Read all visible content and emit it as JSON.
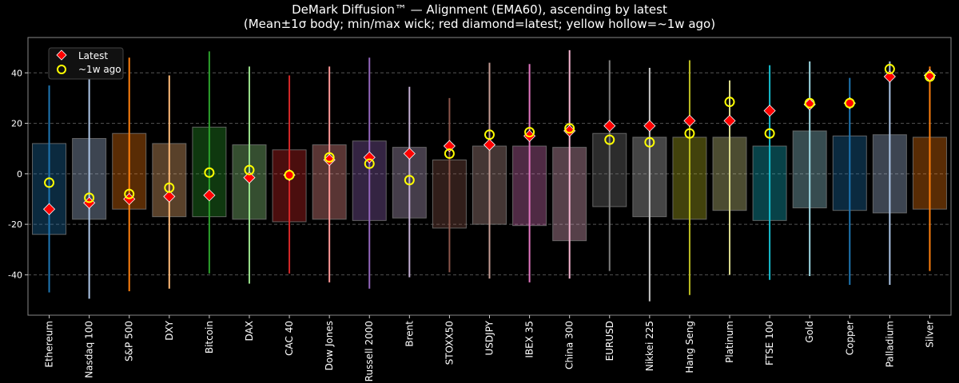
{
  "chart_data": {
    "type": "box",
    "title": "DeMark Diffusion™ — Alignment (EMA60), ascending by latest",
    "subtitle": "(Mean±1σ body; min/max wick; red diamond=latest; yellow hollow=~1w ago)",
    "xlabel": "",
    "ylabel": "",
    "ylim": [
      -56,
      54
    ],
    "yticks": [
      -40,
      -20,
      0,
      20,
      40
    ],
    "grid": true,
    "legend": {
      "placement": "top-left",
      "entries": [
        "Latest",
        "~1w ago"
      ]
    },
    "marker_colors": {
      "latest": "#ff0000",
      "week_ago": "#ffff00"
    },
    "categories": [
      "Ethereum",
      "Nasdaq 100",
      "S&P 500",
      "DXY",
      "Bitcoin",
      "DAX",
      "CAC 40",
      "Dow Jones",
      "Russell 2000",
      "Brent",
      "STOXX50",
      "USDJPY",
      "IBEX 35",
      "China 300",
      "EURUSD",
      "Nikkei 225",
      "Hang Seng",
      "Platinum",
      "FTSE 100",
      "Gold",
      "Copper",
      "Palladium",
      "Silver"
    ],
    "colors": [
      "#1f77b4",
      "#aec7e8",
      "#ff7f0e",
      "#ffbb78",
      "#2ca02c",
      "#98df8a",
      "#d62728",
      "#ff9896",
      "#9467bd",
      "#c5b0d5",
      "#8c564b",
      "#c49c94",
      "#e377c2",
      "#f7b6d2",
      "#7f7f7f",
      "#c7c7c7",
      "#bcbd22",
      "#dbdb8d",
      "#17becf",
      "#9edae5",
      "#1f77b4",
      "#aec7e8",
      "#ff7f0e"
    ],
    "wick_max": [
      35,
      42,
      46,
      39,
      48.5,
      42.5,
      39,
      42.5,
      46,
      34.5,
      30,
      44,
      43.5,
      49,
      45,
      42,
      45,
      37,
      43,
      44.5,
      38,
      44.5,
      42.5
    ],
    "wick_min": [
      -47,
      -49.5,
      -46.5,
      -45.5,
      -39.5,
      -43.5,
      -39.5,
      -43,
      -45.5,
      -41,
      -39,
      -41.5,
      -43,
      -41.5,
      -38.5,
      -50.5,
      -48,
      -40,
      -42,
      -40.5,
      -44,
      -44,
      -38.5
    ],
    "body_high": [
      12,
      14,
      16,
      12,
      18.5,
      11.5,
      9.5,
      11.5,
      13,
      10.5,
      5.5,
      11,
      11,
      10.5,
      16,
      14.5,
      14.5,
      14.5,
      11,
      17,
      15,
      15.5,
      14.5
    ],
    "body_low": [
      -24,
      -18,
      -14,
      -17,
      -17,
      -18,
      -19,
      -18,
      -18.5,
      -17.5,
      -21.5,
      -20,
      -20.5,
      -26.5,
      -13,
      -17,
      -18,
      -14.5,
      -18.5,
      -13.5,
      -14.5,
      -15.5,
      -14
    ],
    "latest": [
      -14,
      -11.5,
      -10,
      -9,
      -8.5,
      -1.5,
      -0.5,
      5.5,
      6.5,
      8,
      11,
      11.5,
      15,
      17,
      19,
      19,
      21,
      21,
      25,
      27.5,
      28,
      38.5,
      39
    ],
    "week_ago": [
      -3.5,
      -9.5,
      -8,
      -5.5,
      0.5,
      1.5,
      -0.5,
      6.5,
      4,
      -2.5,
      8,
      15.5,
      16.5,
      18,
      13.5,
      12.5,
      16,
      28.5,
      16,
      28,
      28,
      41.5,
      38.5
    ]
  }
}
